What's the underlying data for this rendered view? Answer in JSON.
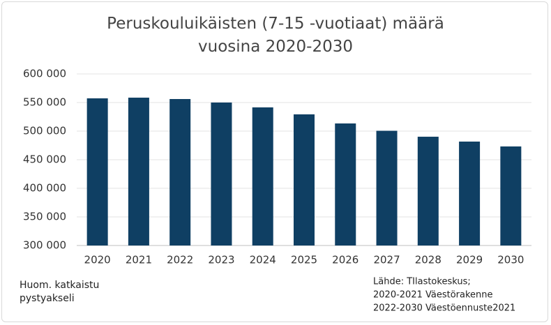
{
  "chart_data": {
    "type": "bar",
    "title": "Peruskouluikäisten (7-15 -vuotiaat) määrä vuosina 2020-2030",
    "categories": [
      "2020",
      "2021",
      "2022",
      "2023",
      "2024",
      "2025",
      "2026",
      "2027",
      "2028",
      "2029",
      "2030"
    ],
    "values": [
      557300,
      558500,
      556100,
      550000,
      541500,
      529300,
      513400,
      500600,
      490200,
      481700,
      473200
    ],
    "color": "#0f3f63",
    "ylim": [
      300000,
      600000
    ],
    "yticks": [
      {
        "value": 300000,
        "label": "300 000"
      },
      {
        "value": 350000,
        "label": "350 000"
      },
      {
        "value": 400000,
        "label": "400 000"
      },
      {
        "value": 450000,
        "label": "450 000"
      },
      {
        "value": 500000,
        "label": "500 000"
      },
      {
        "value": 550000,
        "label": "550 000"
      },
      {
        "value": 600000,
        "label": "600 000"
      }
    ],
    "grid": true,
    "note": "Huom. katkaistu pystyakseli",
    "source": [
      "Lähde: TIlastokeskus;",
      "2020-2021 Väestörakenne",
      "2022-2030 Väestöennuste2021"
    ]
  }
}
